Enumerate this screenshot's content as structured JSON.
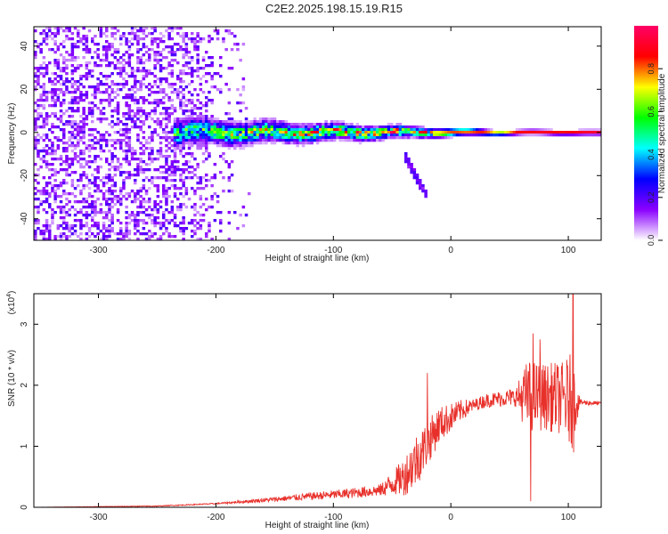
{
  "title": "C2E2.2025.198.15.19.R15",
  "chart_data": [
    {
      "type": "heatmap",
      "xlabel": "Height of straight line (km)",
      "ylabel": "Frequency (Hz)",
      "xlim": [
        -355,
        128
      ],
      "ylim": [
        -50,
        49
      ],
      "xticks": [
        -300,
        -200,
        -100,
        0,
        100
      ],
      "yticks": [
        -40,
        -20,
        0,
        20,
        40
      ],
      "colorbar": {
        "label": "Normalized spectral amplitude",
        "range": [
          0,
          1
        ],
        "ticks": [
          "0.0",
          "0.2",
          "0.4",
          "0.6",
          "0.8"
        ],
        "colormap": [
          "#ffffff",
          "#8a00ff",
          "#0000ff",
          "#00ffff",
          "#00ff00",
          "#ffff00",
          "#ff0000",
          "#ff0066"
        ]
      },
      "features": {
        "noise_region_x": [
          -355,
          -180
        ],
        "noise_level": 0.15,
        "signal_band": {
          "x": [
            -235,
            128
          ],
          "center_freq": 0,
          "half_width_hz": [
            6,
            1
          ],
          "peak_amplitude": [
            0.5,
            0.95
          ]
        },
        "descending_tail": {
          "x": [
            -40,
            -20
          ],
          "freq": [
            -10,
            -30
          ]
        }
      }
    },
    {
      "type": "line",
      "xlabel": "Height of straight line (km)",
      "ylabel": "SNR (10 * v/v)",
      "yscale_label": "(x10",
      "yscale_exp": "4",
      "xlim": [
        -355,
        128
      ],
      "ylim": [
        0,
        3.5
      ],
      "xticks": [
        -300,
        -200,
        -100,
        0,
        100
      ],
      "yticks": [
        0,
        1,
        2,
        3
      ],
      "series_color": "#e8302a",
      "envelope": {
        "x": [
          -355,
          -250,
          -200,
          -150,
          -120,
          -90,
          -60,
          -40,
          -25,
          -10,
          10,
          30,
          50,
          70,
          90,
          110,
          128
        ],
        "y": [
          0.0,
          0.02,
          0.06,
          0.13,
          0.18,
          0.22,
          0.28,
          0.5,
          0.9,
          1.35,
          1.6,
          1.75,
          1.8,
          1.82,
          1.8,
          1.72,
          1.7
        ]
      },
      "noise_amp": {
        "x": [
          -355,
          -200,
          -150,
          -60,
          -45,
          -30,
          -10,
          20,
          55,
          65,
          80,
          95,
          103,
          110,
          128
        ],
        "y": [
          0.0,
          0.01,
          0.04,
          0.1,
          0.25,
          0.45,
          0.3,
          0.1,
          0.15,
          0.6,
          0.55,
          0.6,
          0.8,
          0.05,
          0.03
        ]
      },
      "spikes": [
        {
          "x": -20,
          "y": 2.2
        },
        {
          "x": 68,
          "y": 0.1
        },
        {
          "x": 70,
          "y": 2.85
        },
        {
          "x": 76,
          "y": 2.75
        },
        {
          "x": 104,
          "y": 3.5
        },
        {
          "x": 104.5,
          "y": 0.9
        }
      ]
    }
  ]
}
